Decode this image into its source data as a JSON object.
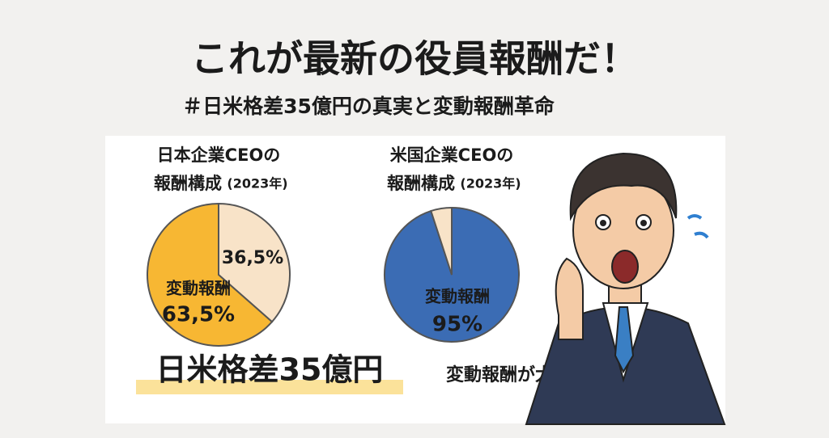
{
  "header": {
    "title": "これが最新の役員報酬だ！",
    "subtitle": "＃日米格差35億円の真実と変動報酬革命"
  },
  "chart_data": [
    {
      "type": "pie",
      "title_lines": [
        "日本企業CEOの",
        "報酬構成",
        "(2023年)"
      ],
      "categories": [
        null,
        "変動報酬"
      ],
      "values": [
        36.5,
        63.5
      ],
      "value_labels": [
        "36,5%",
        "63,5%"
      ],
      "colors": [
        "#f8e3c8",
        "#f7b733"
      ]
    },
    {
      "type": "pie",
      "title_lines": [
        "米国企業CEOの",
        "報酬構成",
        "(2023年)"
      ],
      "categories": [
        "変動報酬",
        null
      ],
      "values": [
        95,
        5
      ],
      "value_labels": [
        "95%",
        null
      ],
      "colors": [
        "#3b6cb4",
        "#f8e3c8"
      ]
    }
  ],
  "callouts": {
    "gap": "日米格差35億円",
    "note": "変動報酬が大半を占める"
  }
}
